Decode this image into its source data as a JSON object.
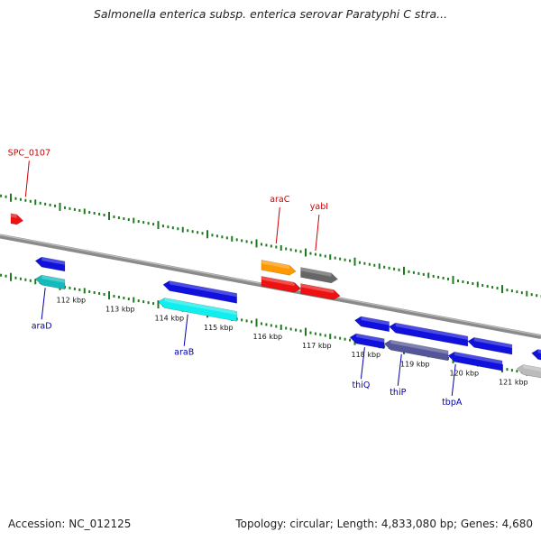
{
  "title": "Salmonella enterica subsp. enterica serovar Paratyphi C stra...",
  "footer": {
    "accession": "Accession: NC_012125",
    "summary": "Topology: circular; Length: 4,833,080 bp; Genes: 4,680"
  },
  "colors": {
    "backbone": "#8a8a8a",
    "tick": "#1e7a1e",
    "forward_label": "#cc0000",
    "reverse_label": "#0000aa",
    "red": "#ee1111",
    "blue": "#1111dd",
    "cyan": "#11eeee",
    "teal": "#11bbbb",
    "orange": "#ff9900",
    "gray": "#666666",
    "slate": "#555599",
    "lightgray": "#bbbbbb"
  },
  "scale": {
    "ticks_kbp": [
      112,
      113,
      114,
      115,
      116,
      117,
      118,
      119,
      120,
      121
    ],
    "unit": "kbp"
  },
  "forward_genes": [
    {
      "label": "",
      "start_kbp": 111.0,
      "end_kbp": 111.25,
      "color": "red",
      "row": 1,
      "label_pos": null
    },
    {
      "label": "araC",
      "start_kbp": 116.1,
      "end_kbp": 116.8,
      "color": "orange",
      "row": 1,
      "label_pos": 116.4
    },
    {
      "label": "",
      "start_kbp": 116.1,
      "end_kbp": 116.9,
      "color": "red",
      "row": 2,
      "label_pos": null
    },
    {
      "label": "yabI",
      "start_kbp": 116.9,
      "end_kbp": 117.65,
      "color": "gray",
      "row": 1,
      "label_pos": 117.2
    },
    {
      "label": "",
      "start_kbp": 116.9,
      "end_kbp": 117.7,
      "color": "red",
      "row": 2,
      "label_pos": null
    },
    {
      "label": "SPC_0107",
      "start_kbp": null,
      "end_kbp": null,
      "color": "red",
      "row": 0,
      "label_pos": 111.3
    }
  ],
  "reverse_genes": [
    {
      "label": "araD",
      "start_kbp": 111.5,
      "end_kbp": 112.1,
      "color": "blue",
      "row": 1,
      "label_pos": null
    },
    {
      "label": "",
      "start_kbp": 111.5,
      "end_kbp": 112.1,
      "color": "teal",
      "row": 2,
      "label_pos": null
    },
    {
      "label": "araB",
      "start_kbp": 114.1,
      "end_kbp": 115.6,
      "color": "blue",
      "row": 1,
      "label_pos": null
    },
    {
      "label": "",
      "start_kbp": 114.0,
      "end_kbp": 115.6,
      "color": "cyan",
      "row": 2,
      "label_pos": null
    },
    {
      "label": "thiQ",
      "start_kbp": 118.0,
      "end_kbp": 118.7,
      "color": "blue",
      "row": 1,
      "label_pos": null
    },
    {
      "label": "",
      "start_kbp": 117.9,
      "end_kbp": 118.6,
      "color": "blue",
      "row": 2,
      "label_pos": null
    },
    {
      "label": "thiP",
      "start_kbp": 118.7,
      "end_kbp": 120.3,
      "color": "blue",
      "row": 1,
      "label_pos": null
    },
    {
      "label": "",
      "start_kbp": 118.6,
      "end_kbp": 119.9,
      "color": "slate",
      "row": 2,
      "label_pos": null
    },
    {
      "label": "tbpA",
      "start_kbp": 120.3,
      "end_kbp": 121.2,
      "color": "blue",
      "row": 1,
      "label_pos": null
    },
    {
      "label": "",
      "start_kbp": 119.9,
      "end_kbp": 121.0,
      "color": "blue",
      "row": 2,
      "label_pos": null
    },
    {
      "label": "",
      "start_kbp": 121.6,
      "end_kbp": 122.0,
      "color": "blue",
      "row": 1,
      "label_pos": null
    },
    {
      "label": "",
      "start_kbp": 121.3,
      "end_kbp": 122.0,
      "color": "lightgray",
      "row": 2,
      "label_pos": null
    }
  ],
  "reverse_labels": [
    {
      "label": "araD",
      "kbp": 111.7
    },
    {
      "label": "araB",
      "kbp": 114.6
    },
    {
      "label": "thiQ",
      "kbp": 118.2
    },
    {
      "label": "thiP",
      "kbp": 118.95
    },
    {
      "label": "tbpA",
      "kbp": 120.05
    }
  ]
}
